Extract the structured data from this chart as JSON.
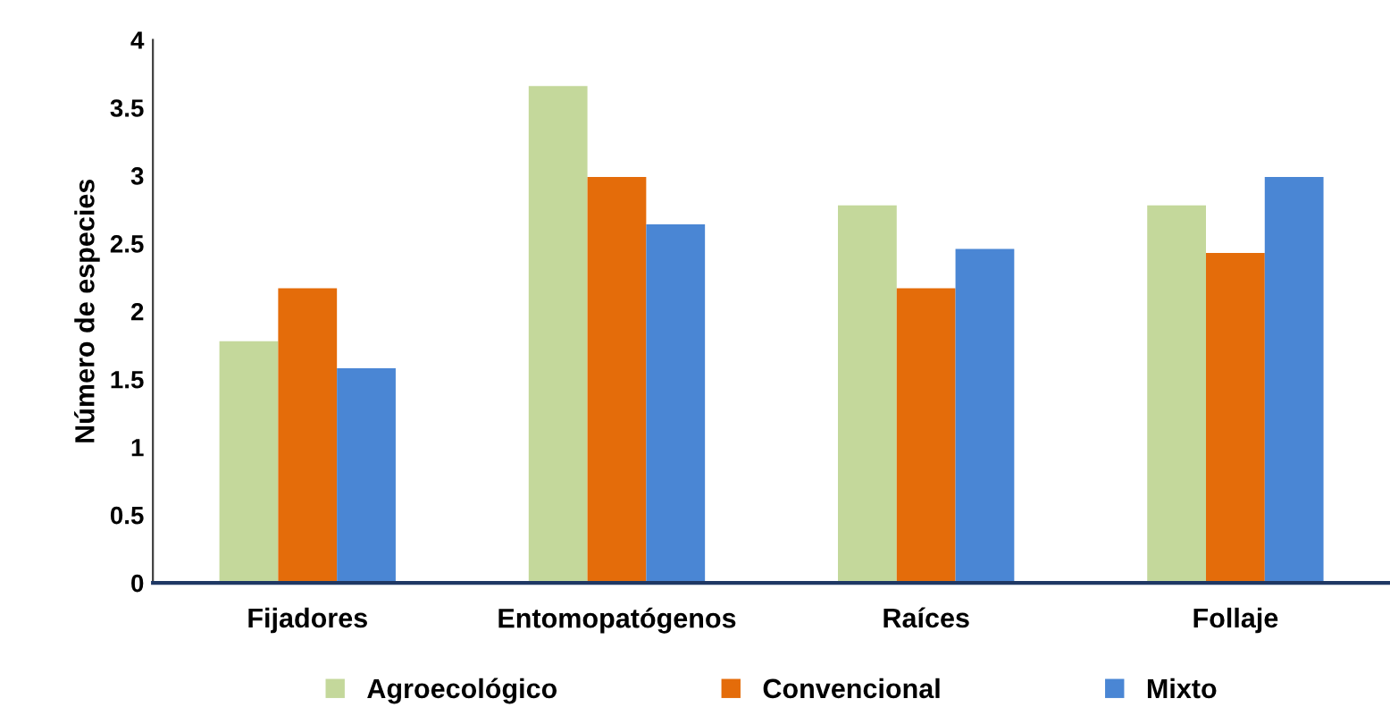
{
  "chart_data": {
    "type": "bar",
    "ylabel": "Número de especies",
    "categories": [
      "Fijadores",
      "Entomopatógenos",
      "Raíces",
      "Follaje"
    ],
    "series": [
      {
        "name": "Agroecológico",
        "color": "#c4d89b",
        "values": [
          1.78,
          3.66,
          2.78,
          2.78
        ]
      },
      {
        "name": "Convencional",
        "color": "#e46c0a",
        "values": [
          2.17,
          2.99,
          2.17,
          2.43
        ]
      },
      {
        "name": "Mixto",
        "color": "#4a86d4",
        "values": [
          1.58,
          2.64,
          2.46,
          2.99
        ]
      }
    ],
    "ylim": [
      0,
      4
    ],
    "yticks": [
      0,
      0.5,
      1,
      1.5,
      2,
      2.5,
      3,
      3.5,
      4
    ],
    "grid": false,
    "legend": "bottom"
  }
}
